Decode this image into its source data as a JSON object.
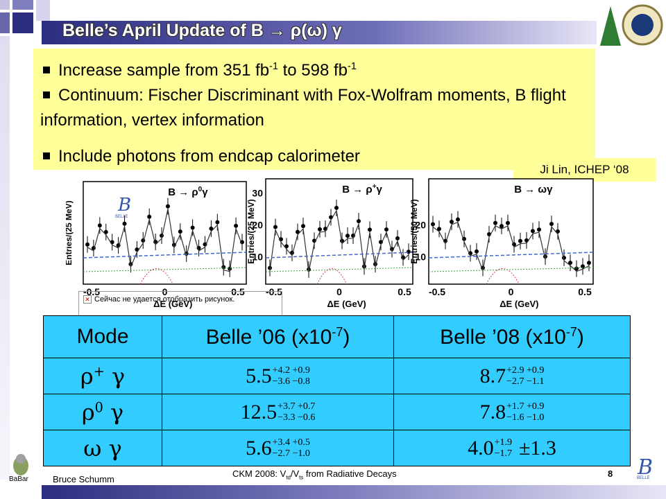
{
  "title": "Belle’s April Update of B → ρ(ω) γ",
  "bullets": [
    [
      {
        "text": "Increase sample from 351 fb"
      },
      {
        "text": "-1",
        "sup": true
      },
      {
        "text": " to 598 fb"
      },
      {
        "text": "-1",
        "sup": true
      }
    ],
    [
      {
        "text": "Continuum: Fischer Discriminant with Fox-Wolfram moments, B flight information, vertex information"
      }
    ],
    [
      {
        "text": "Include photons from endcap calorimeter"
      }
    ]
  ],
  "attribution": "Ji Lin, ICHEP ‘08",
  "plots": [
    {
      "process": [
        {
          "text": "B → ρ"
        },
        {
          "text": "0",
          "sup": true
        },
        {
          "text": "γ"
        }
      ],
      "logo": "BELLE",
      "y_label": "Entries/(25 MeV)",
      "x_ticks": [
        "-0.5",
        "0",
        "0.5"
      ],
      "x_label": "ΔE (GeV)"
    },
    {
      "process": [
        {
          "text": "B → ρ"
        },
        {
          "text": "+",
          "sup": true
        },
        {
          "text": "γ"
        }
      ],
      "y_label": "Entries/(25 MeV)",
      "y_ticks": [
        "10",
        "20",
        "30"
      ],
      "x_ticks": [
        "-0.5",
        "0",
        "0.5"
      ],
      "x_label": "ΔE (GeV)"
    },
    {
      "process": [
        {
          "text": "B → ωγ"
        }
      ],
      "y_label": "Entries/(50 MeV)",
      "y_ticks": [
        "10",
        "20"
      ],
      "x_ticks": [
        "-0.5",
        "0",
        "0.5"
      ],
      "x_label": "ΔE (GeV)"
    }
  ],
  "broken_image": "Сейчас не удается отобразить рисунок.",
  "table": {
    "header": [
      [
        {
          "text": "Mode"
        }
      ],
      [
        {
          "text": "Belle ’06 (x10"
        },
        {
          "text": "-7",
          "sup": true
        },
        {
          "text": ")"
        }
      ],
      [
        {
          "text": "Belle ’08 (x10"
        },
        {
          "text": "-7",
          "sup": true
        },
        {
          "text": ")"
        }
      ]
    ],
    "rows": [
      {
        "mode": [
          {
            "text": "ρ"
          },
          {
            "text": "+",
            "sup": true
          },
          {
            "text": " γ"
          }
        ],
        "belle06": {
          "central": "5.5",
          "up": "+4.2 +0.9",
          "down": "−3.6 −0.8"
        },
        "belle08": {
          "central": "8.7",
          "up": "+2.9 +0.9",
          "down": "−2.7 −1.1"
        }
      },
      {
        "mode": [
          {
            "text": "ρ"
          },
          {
            "text": "0",
            "sup": true
          },
          {
            "text": " γ"
          }
        ],
        "belle06": {
          "central": "12.5",
          "up": "+3.7 +0.7",
          "down": "−3.3 −0.6"
        },
        "belle08": {
          "central": "7.8",
          "up": "+1.7 +0.9",
          "down": "−1.6 −1.0"
        }
      },
      {
        "mode": [
          {
            "text": "ω γ"
          }
        ],
        "belle06": {
          "central": "5.6",
          "up": "+3.4 +0.5",
          "down": "−2.7 −1.0"
        },
        "belle08": {
          "central": "4.0",
          "up": "+1.9",
          "down": "−1.7",
          "syst": "±1.3"
        }
      }
    ]
  },
  "footer": {
    "author": "Bruce Schumm",
    "center": [
      {
        "text": "CKM 2008: V"
      },
      {
        "text": "td",
        "sub": true
      },
      {
        "text": "/V"
      },
      {
        "text": "ts",
        "sub": true
      },
      {
        "text": " from Radiative Decays"
      }
    ],
    "page": "8",
    "left_logo": "BaBar",
    "right_logo": "BELLE"
  }
}
